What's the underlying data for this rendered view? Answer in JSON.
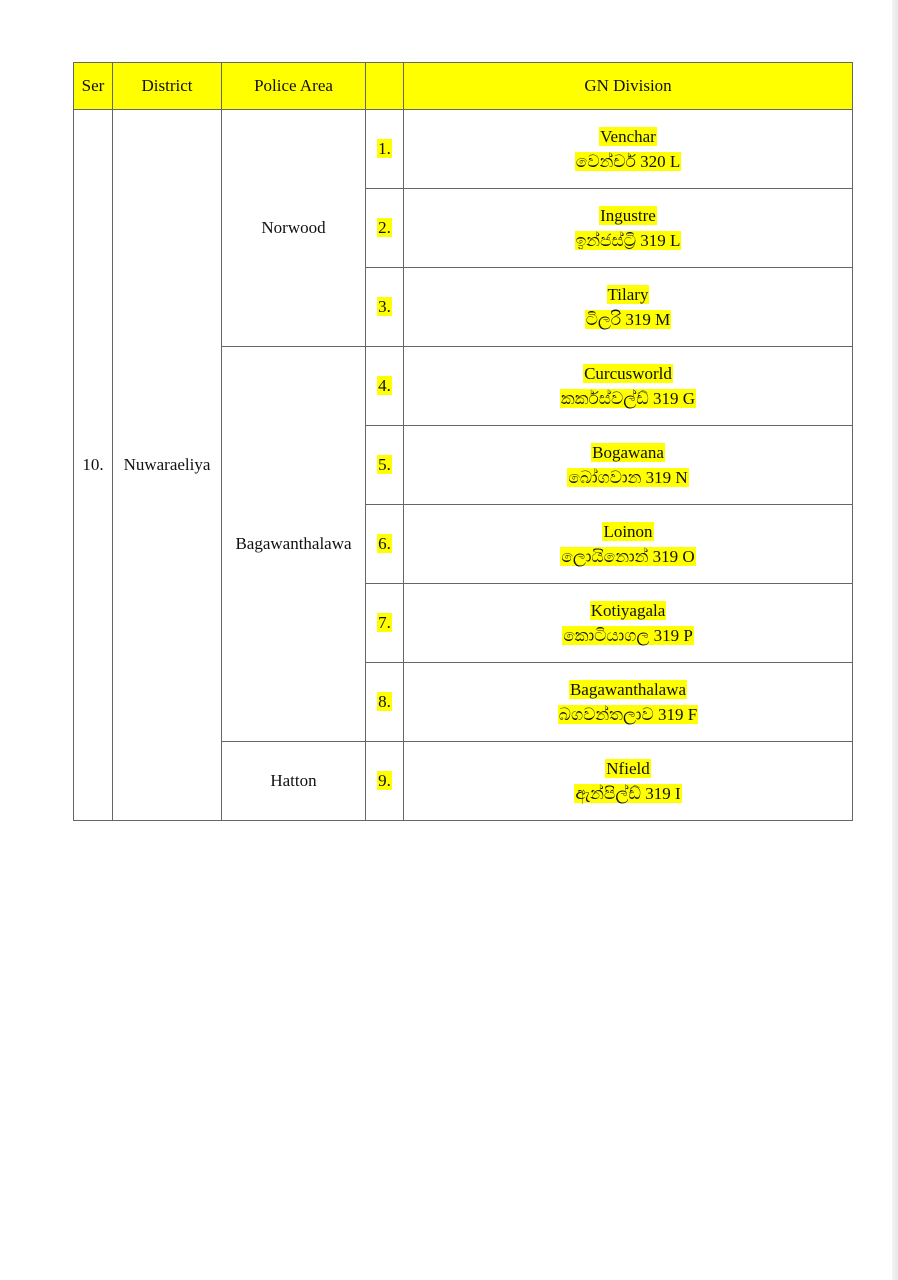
{
  "header": {
    "ser": "Ser",
    "district": "District",
    "police_area": "Police Area",
    "no": "",
    "gn_division": "GN Division"
  },
  "ser": "10.",
  "district": "Nuwaraeliya",
  "police_areas": [
    "Norwood",
    "Bagawanthalawa",
    "Hatton"
  ],
  "rows": [
    {
      "no": "1.",
      "en": "Venchar",
      "si": "වෙන්චර්  320 L"
    },
    {
      "no": "2.",
      "en": "Ingustre",
      "si": "ඉන්ජස්ට්‍රි 319 L"
    },
    {
      "no": "3.",
      "en": "Tilary",
      "si": "ටිලරි 319 M"
    },
    {
      "no": "4.",
      "en": "Curcusworld",
      "si": "කර්කස්වල්ඩ් 319 G"
    },
    {
      "no": "5.",
      "en": "Bogawana",
      "si": "බෝගවාන 319 N"
    },
    {
      "no": "6.",
      "en": "Loinon",
      "si": "ලොයිනොන් 319 O"
    },
    {
      "no": "7.",
      "en": "Kotiyagala",
      "si": "කොටියාගල 319 P"
    },
    {
      "no": "8.",
      "en": "Bagawanthalawa",
      "si": "බගවන්තලාව 319 F"
    },
    {
      "no": "9.",
      "en": "Nfield",
      "si": "ඇන්පිල්ඩ් 319 I"
    }
  ],
  "colors": {
    "highlight": "#ffff00",
    "border": "#666666"
  }
}
